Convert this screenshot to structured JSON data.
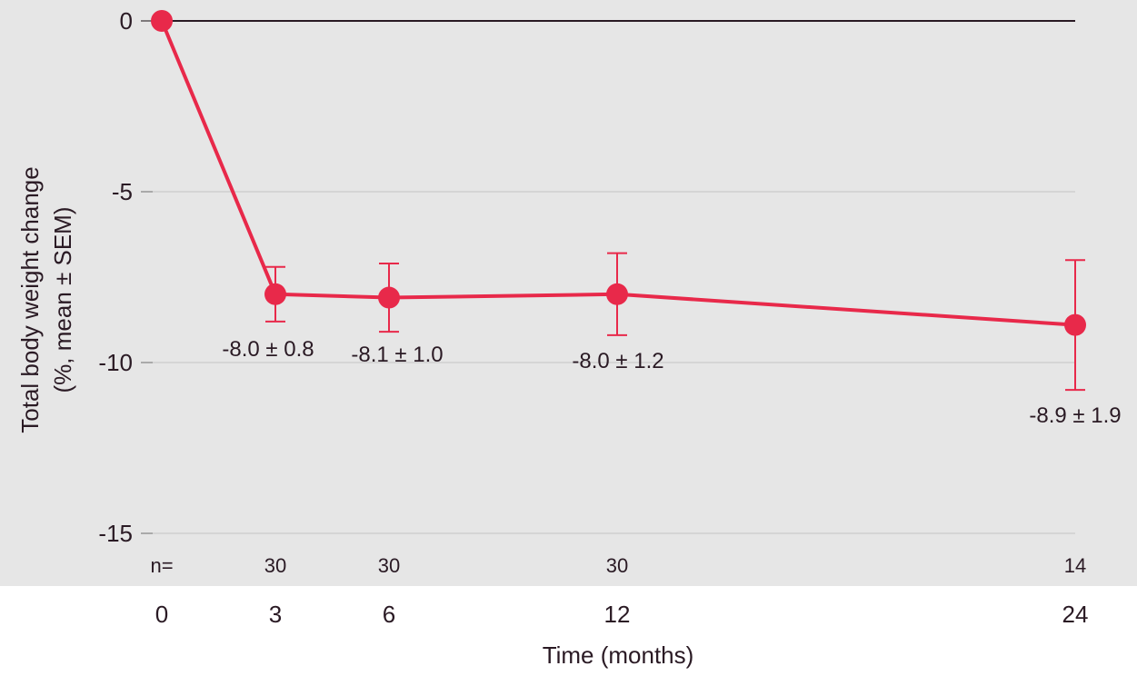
{
  "chart_data": {
    "type": "line",
    "ylabel_line1": "Total body weight change",
    "ylabel_line2": "(%, mean ± SEM)",
    "xlabel": "Time (months)",
    "ylim": [
      -15,
      0
    ],
    "yticks": [
      0,
      -5,
      -10,
      -15
    ],
    "xticks": [
      0,
      3,
      6,
      12,
      24
    ],
    "x": [
      0,
      3,
      6,
      12,
      24
    ],
    "y": [
      0,
      -8.0,
      -8.1,
      -8.0,
      -8.9
    ],
    "sem": [
      null,
      0.8,
      1.0,
      1.2,
      1.9
    ],
    "point_labels": [
      "",
      "-8.0 ± 0.8",
      "-8.1 ± 1.0",
      "-8.0 ± 1.2",
      "-8.9 ± 1.9"
    ],
    "n_label": "n=",
    "n_values": [
      "",
      "30",
      "30",
      "30",
      "14"
    ],
    "grid": true,
    "colors": {
      "series": "#e8294a",
      "plot_background": "#e6e6e6",
      "gridline": "#cfcfcf",
      "zero_line": "#2a1a24",
      "text": "#2a1a24"
    }
  }
}
